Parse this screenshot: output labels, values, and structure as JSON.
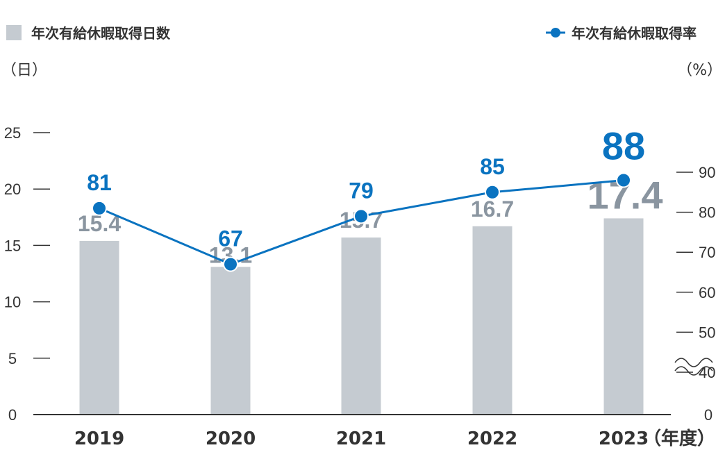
{
  "chart_data": {
    "type": "bar+line",
    "categories": [
      "2019",
      "2020",
      "2021",
      "2022",
      "2023"
    ],
    "x_unit": "（年度）",
    "series": [
      {
        "name": "年次有給休暇取得日数",
        "type": "bar",
        "axis": "left",
        "values": [
          15.4,
          13.1,
          15.7,
          16.7,
          17.4
        ],
        "value_labels": [
          "15.4",
          "13.1",
          "15.7",
          "16.7",
          "17.4"
        ],
        "color": "#c5cbd1",
        "label_color": "#8a95a0"
      },
      {
        "name": "年次有給休暇取得率",
        "type": "line",
        "axis": "right",
        "values": [
          81,
          67,
          79,
          85,
          88
        ],
        "value_labels": [
          "81",
          "67",
          "79",
          "85",
          "88"
        ],
        "color": "#0a73c0"
      }
    ],
    "left_axis": {
      "unit": "（日）",
      "ylim": [
        0,
        25
      ],
      "ticks": [
        0,
        5,
        10,
        15,
        20,
        25
      ],
      "tick_labels": [
        "0",
        "5",
        "10",
        "15",
        "20",
        "25"
      ]
    },
    "right_axis": {
      "unit": "（%）",
      "axis_break": true,
      "ticks": [
        40,
        50,
        60,
        70,
        80,
        90
      ],
      "tick_labels": [
        "40",
        "50",
        "60",
        "70",
        "80",
        "90"
      ],
      "zero_label": "0"
    },
    "highlighted_category": "2023",
    "legend_placement": "top",
    "grid": false
  }
}
